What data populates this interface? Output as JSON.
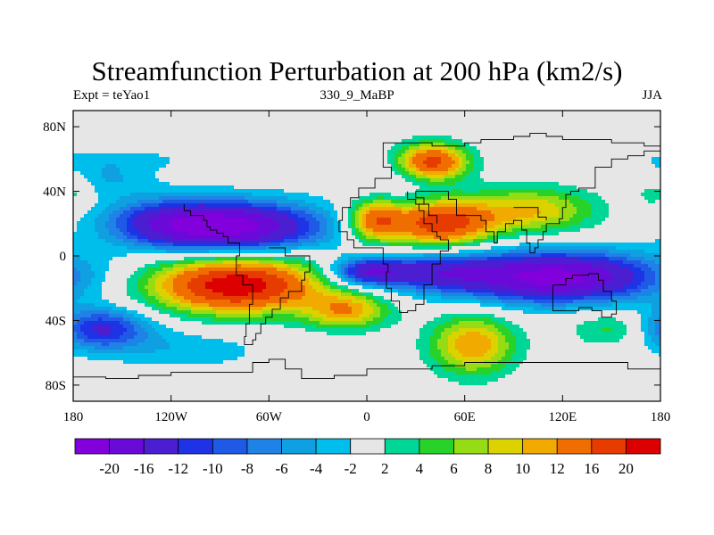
{
  "header": {
    "title": "Streamfunction Perturbation at 200 hPa (km2/s)",
    "left_label": "Expt = teYao1",
    "center_label": "330_9_MaBP",
    "right_label": "JJA"
  },
  "chart_data": {
    "type": "heatmap",
    "title": "Streamfunction Perturbation at 200 hPa (km2/s)",
    "subtitle_left": "Expt = teYao1",
    "subtitle_center": "330_9_MaBP",
    "subtitle_right": "JJA",
    "xlabel": "",
    "ylabel": "",
    "xlim": [
      -180,
      180
    ],
    "ylim": [
      -90,
      90
    ],
    "x_ticks": [
      {
        "value": -180,
        "label": "180"
      },
      {
        "value": -120,
        "label": "120W"
      },
      {
        "value": -60,
        "label": "60W"
      },
      {
        "value": 0,
        "label": "0"
      },
      {
        "value": 60,
        "label": "60E"
      },
      {
        "value": 120,
        "label": "120E"
      },
      {
        "value": 180,
        "label": "180"
      }
    ],
    "y_ticks": [
      {
        "value": 80,
        "label": "80N"
      },
      {
        "value": 40,
        "label": "40N"
      },
      {
        "value": 0,
        "label": "0"
      },
      {
        "value": -40,
        "label": "40S"
      },
      {
        "value": -80,
        "label": "80S"
      }
    ],
    "colorbar": {
      "levels": [
        "-20",
        "-16",
        "-12",
        "-10",
        "-8",
        "-6",
        "-4",
        "-2",
        "2",
        "4",
        "6",
        "8",
        "10",
        "12",
        "16",
        "20"
      ],
      "colors": [
        "#8200dc",
        "#6a0ad8",
        "#4b1ed2",
        "#1e32e6",
        "#1e5ae6",
        "#1e82e6",
        "#0ea0e0",
        "#00beeb",
        "#e6e6e6",
        "#00d796",
        "#28d228",
        "#96dc14",
        "#dcd200",
        "#f0aa00",
        "#f06e00",
        "#e63c00",
        "#dc0000"
      ]
    },
    "blobs": [
      {
        "lon": -85,
        "lat": 18,
        "slon": 40,
        "slat": 11,
        "value": -22
      },
      {
        "lon": -165,
        "lat": -45,
        "slon": 22,
        "slat": 9,
        "value": -13
      },
      {
        "lon": -125,
        "lat": 22,
        "slon": 25,
        "slat": 10,
        "value": -6
      },
      {
        "lon": -160,
        "lat": 48,
        "slon": 22,
        "slat": 8,
        "value": -4
      },
      {
        "lon": -110,
        "lat": -58,
        "slon": 35,
        "slat": 9,
        "value": -3.5
      },
      {
        "lon": -80,
        "lat": -18,
        "slon": 36,
        "slat": 12,
        "value": 23
      },
      {
        "lon": -12,
        "lat": -34,
        "slon": 18,
        "slat": 8,
        "value": 11
      },
      {
        "lon": 45,
        "lat": 20,
        "slon": 22,
        "slat": 10,
        "value": 18
      },
      {
        "lon": 5,
        "lat": 22,
        "slon": 12,
        "slat": 9,
        "value": 14
      },
      {
        "lon": 100,
        "lat": 28,
        "slon": 28,
        "slat": 10,
        "value": 10
      },
      {
        "lon": 40,
        "lat": 58,
        "slon": 15,
        "slat": 8,
        "value": 18
      },
      {
        "lon": 20,
        "lat": 48,
        "slon": 18,
        "slat": 10,
        "value": -2.5
      },
      {
        "lon": 115,
        "lat": -13,
        "slon": 45,
        "slat": 11,
        "value": -22
      },
      {
        "lon": 0,
        "lat": -10,
        "slon": 16,
        "slat": 6,
        "value": -14
      },
      {
        "lon": 40,
        "lat": -10,
        "slon": 25,
        "slat": 8,
        "value": -10
      },
      {
        "lon": 65,
        "lat": -55,
        "slon": 18,
        "slat": 13,
        "value": 12
      },
      {
        "lon": 155,
        "lat": -45,
        "slon": 20,
        "slat": 8,
        "value": 6
      },
      {
        "lon": 178,
        "lat": 40,
        "slon": 10,
        "slat": 8,
        "value": 4
      },
      {
        "lon": -150,
        "lat": 60,
        "slon": 40,
        "slat": 5,
        "value": -2.3
      }
    ]
  }
}
